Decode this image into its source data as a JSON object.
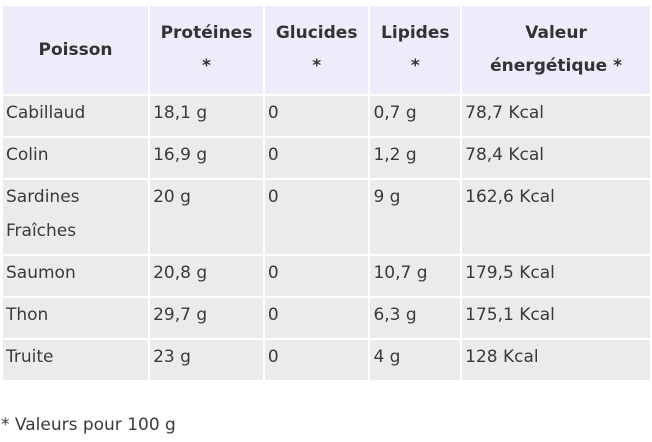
{
  "table": {
    "headers": [
      {
        "line1": "Poisson",
        "line2": ""
      },
      {
        "line1": "Protéines",
        "line2": "*"
      },
      {
        "line1": "Glucides",
        "line2": "*"
      },
      {
        "line1": "Lipides",
        "line2": "*"
      },
      {
        "line1": "Valeur",
        "line2": "énergétique *"
      }
    ],
    "rows": [
      {
        "poisson": [
          "Cabillaud"
        ],
        "proteines": "18,1 g",
        "glucides": "0",
        "lipides": "0,7 g",
        "energie": "78,7 Kcal"
      },
      {
        "poisson": [
          "Colin"
        ],
        "proteines": "16,9 g",
        "glucides": "0",
        "lipides": "1,2 g",
        "energie": "78,4 Kcal"
      },
      {
        "poisson": [
          "Sardines",
          "Fraîches"
        ],
        "proteines": "20 g",
        "glucides": "0",
        "lipides": "9 g",
        "energie": "162,6 Kcal"
      },
      {
        "poisson": [
          "Saumon"
        ],
        "proteines": "20,8 g",
        "glucides": "0",
        "lipides": "10,7 g",
        "energie": "179,5 Kcal"
      },
      {
        "poisson": [
          "Thon"
        ],
        "proteines": "29,7 g",
        "glucides": "0",
        "lipides": "6,3 g",
        "energie": "175,1 Kcal"
      },
      {
        "poisson": [
          "Truite"
        ],
        "proteines": "23 g",
        "glucides": "0",
        "lipides": "4 g",
        "energie": "128 Kcal"
      }
    ]
  },
  "footnote": "* Valeurs pour 100 g",
  "colors": {
    "header_bg": "#ececfb",
    "cell_bg": "#ebebeb"
  }
}
